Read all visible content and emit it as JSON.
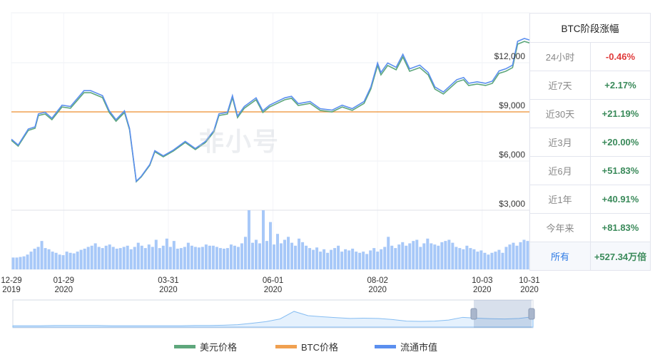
{
  "watermark": "非小号",
  "table": {
    "title": "BTC阶段涨幅",
    "rows": [
      {
        "label": "24小时",
        "value": "-0.46%",
        "negative": true
      },
      {
        "label": "近7天",
        "value": "+2.17%"
      },
      {
        "label": "近30天",
        "value": "+21.19%"
      },
      {
        "label": "近3月",
        "value": "+20.00%"
      },
      {
        "label": "近6月",
        "value": "+51.83%"
      },
      {
        "label": "近1年",
        "value": "+40.91%"
      },
      {
        "label": "今年来",
        "value": "+81.83%"
      },
      {
        "label": "所有",
        "value": "+527.34万倍",
        "selected": true
      }
    ]
  },
  "legend": [
    {
      "label": "美元价格",
      "color": "#5ea77c"
    },
    {
      "label": "BTC价格",
      "color": "#f0a050"
    },
    {
      "label": "流通市值",
      "color": "#5b8fef"
    }
  ],
  "chart_data": {
    "type": "line",
    "ylim": [
      3000,
      13500
    ],
    "yticks": [
      "$3,000",
      "$6,000",
      "$9,000",
      "$12,000"
    ],
    "ytick_values": [
      3000,
      6000,
      9000,
      12000
    ],
    "xticks": [
      {
        "date": "2019-12-29",
        "l1": "12-29",
        "l2": "2019"
      },
      {
        "date": "2020-01-29",
        "l1": "01-29",
        "l2": "2020"
      },
      {
        "date": "2020-03-31",
        "l1": "03-31",
        "l2": "2020"
      },
      {
        "date": "2020-06-01",
        "l1": "06-01",
        "l2": "2020"
      },
      {
        "date": "2020-08-02",
        "l1": "08-02",
        "l2": "2020"
      },
      {
        "date": "2020-10-03",
        "l1": "10-03",
        "l2": "2020"
      },
      {
        "date": "2020-10-31",
        "l1": "10-31",
        "l2": "2020"
      }
    ],
    "x_range": [
      "2019-12-29",
      "2020-10-31"
    ],
    "series": [
      {
        "name": "美元价格",
        "color": "#5ea77c",
        "points": [
          [
            "2019-12-29",
            7260
          ],
          [
            "2020-01-02",
            6910
          ],
          [
            "2020-01-08",
            7870
          ],
          [
            "2020-01-12",
            8000
          ],
          [
            "2020-01-14",
            8780
          ],
          [
            "2020-01-18",
            8870
          ],
          [
            "2020-01-22",
            8520
          ],
          [
            "2020-01-28",
            9300
          ],
          [
            "2020-02-02",
            9220
          ],
          [
            "2020-02-10",
            10170
          ],
          [
            "2020-02-14",
            10170
          ],
          [
            "2020-02-21",
            9870
          ],
          [
            "2020-02-25",
            8960
          ],
          [
            "2020-02-29",
            8430
          ],
          [
            "2020-03-05",
            8960
          ],
          [
            "2020-03-08",
            7910
          ],
          [
            "2020-03-12",
            4740
          ],
          [
            "2020-03-15",
            5040
          ],
          [
            "2020-03-20",
            5740
          ],
          [
            "2020-03-23",
            6570
          ],
          [
            "2020-03-28",
            6260
          ],
          [
            "2020-04-03",
            6610
          ],
          [
            "2020-04-10",
            7130
          ],
          [
            "2020-04-16",
            6700
          ],
          [
            "2020-04-22",
            7130
          ],
          [
            "2020-04-27",
            7780
          ],
          [
            "2020-04-30",
            8780
          ],
          [
            "2020-05-05",
            8870
          ],
          [
            "2020-05-08",
            9870
          ],
          [
            "2020-05-11",
            8650
          ],
          [
            "2020-05-15",
            9220
          ],
          [
            "2020-05-22",
            9740
          ],
          [
            "2020-05-26",
            8960
          ],
          [
            "2020-05-30",
            9300
          ],
          [
            "2020-06-08",
            9740
          ],
          [
            "2020-06-12",
            9830
          ],
          [
            "2020-06-16",
            9390
          ],
          [
            "2020-06-23",
            9520
          ],
          [
            "2020-06-29",
            9090
          ],
          [
            "2020-07-06",
            9000
          ],
          [
            "2020-07-12",
            9300
          ],
          [
            "2020-07-18",
            9090
          ],
          [
            "2020-07-25",
            9520
          ],
          [
            "2020-07-29",
            10390
          ],
          [
            "2020-08-02",
            11830
          ],
          [
            "2020-08-04",
            11260
          ],
          [
            "2020-08-08",
            11830
          ],
          [
            "2020-08-13",
            11570
          ],
          [
            "2020-08-17",
            12350
          ],
          [
            "2020-08-21",
            11480
          ],
          [
            "2020-08-27",
            11700
          ],
          [
            "2020-09-01",
            11260
          ],
          [
            "2020-09-05",
            10390
          ],
          [
            "2020-09-10",
            10090
          ],
          [
            "2020-09-18",
            10830
          ],
          [
            "2020-09-22",
            10960
          ],
          [
            "2020-09-25",
            10610
          ],
          [
            "2020-09-30",
            10700
          ],
          [
            "2020-10-05",
            10610
          ],
          [
            "2020-10-09",
            10740
          ],
          [
            "2020-10-13",
            11350
          ],
          [
            "2020-10-17",
            11480
          ],
          [
            "2020-10-21",
            11700
          ],
          [
            "2020-10-24",
            13130
          ],
          [
            "2020-10-28",
            13300
          ],
          [
            "2020-10-31",
            13210
          ]
        ]
      },
      {
        "name": "BTC价格",
        "color": "#f0a050",
        "constant": 1
      },
      {
        "name": "流通市值",
        "color": "#5b8fef"
      }
    ],
    "volume": [
      20,
      20,
      21,
      22,
      25,
      30,
      35,
      38,
      48,
      36,
      34,
      30,
      28,
      25,
      24,
      30,
      28,
      27,
      30,
      33,
      35,
      38,
      40,
      44,
      38,
      36,
      40,
      42,
      38,
      35,
      36,
      38,
      40,
      34,
      38,
      45,
      40,
      36,
      42,
      38,
      50,
      36,
      40,
      52,
      38,
      48,
      35,
      36,
      38,
      45,
      40,
      38,
      37,
      38,
      42,
      40,
      40,
      38,
      36,
      35,
      36,
      42,
      40,
      38,
      44,
      55,
      100,
      45,
      50,
      44,
      100,
      48,
      80,
      42,
      60,
      44,
      50,
      55,
      45,
      40,
      52,
      46,
      40,
      36,
      33,
      37,
      30,
      34,
      28,
      33,
      36,
      40,
      30,
      34,
      32,
      35,
      30,
      28,
      30,
      26,
      32,
      36,
      30,
      34,
      38,
      55,
      40,
      36,
      42,
      46,
      40,
      44,
      48,
      50,
      38,
      44,
      52,
      44,
      42,
      40,
      46,
      48,
      50,
      45,
      38,
      36,
      34,
      40,
      36,
      34,
      30,
      32,
      28,
      25,
      28,
      30,
      33,
      28,
      38,
      42,
      45,
      40,
      46,
      50,
      48
    ]
  },
  "navigator": [
    0.05,
    0.05,
    0.05,
    0.06,
    0.06,
    0.06,
    0.06,
    0.05,
    0.05,
    0.05,
    0.05,
    0.05,
    0.05,
    0.06,
    0.06,
    0.07,
    0.09,
    0.14,
    0.2,
    0.3,
    0.58,
    0.42,
    0.38,
    0.35,
    0.32,
    0.33,
    0.32,
    0.28,
    0.22,
    0.21,
    0.22,
    0.26,
    0.36,
    0.33,
    0.31,
    0.3,
    0.32,
    0.38
  ]
}
